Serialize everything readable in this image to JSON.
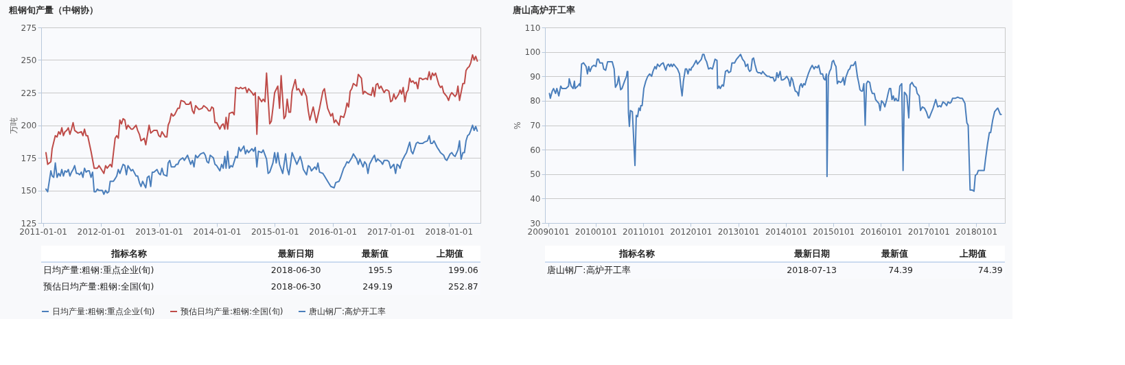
{
  "chart_data": [
    {
      "type": "line",
      "title": "粗钢旬产量（中钢协）",
      "ylabel": "万吨",
      "xlim": [
        "2010-12-21",
        "2018-07-20"
      ],
      "xticks": [
        "2011-01-01",
        "2012-01-01",
        "2013-01-01",
        "2014-01-01",
        "2015-01-01",
        "2016-01-01",
        "2017-01-01",
        "2018-01-01"
      ],
      "ylim": [
        125,
        275
      ],
      "yticks": [
        125,
        150,
        175,
        200,
        225,
        250,
        275
      ],
      "grid": "y",
      "legend": "bottom",
      "series": [
        {
          "name": "日均产量:粗钢:重点企业(旬)",
          "color": "#4a7ebb",
          "x": [
            "2011-01-20",
            "2011-01-31",
            "2011-02-20",
            "2011-02-28",
            "2011-03-10",
            "2011-03-20",
            "2011-03-31",
            "2011-04-10",
            "2011-04-20",
            "2011-04-30",
            "2011-05-10",
            "2011-05-20",
            "2011-05-31",
            "2011-06-10",
            "2011-06-20",
            "2011-06-30",
            "2011-07-10",
            "2011-07-20",
            "2011-07-31",
            "2011-08-10",
            "2011-08-20",
            "2011-08-31",
            "2011-09-10",
            "2011-09-20",
            "2011-09-30",
            "2011-10-10",
            "2011-10-20",
            "2011-10-31",
            "2011-11-10",
            "2011-11-20",
            "2011-11-30",
            "2011-12-10",
            "2011-12-20",
            "2012-01-10",
            "2012-01-20",
            "2012-01-31",
            "2012-02-10",
            "2012-02-20",
            "2012-02-29",
            "2012-03-10",
            "2012-03-20",
            "2012-03-31",
            "2012-04-10",
            "2012-04-20",
            "2012-04-30",
            "2012-05-20",
            "2012-05-31",
            "2012-06-10",
            "2012-06-20",
            "2012-07-10",
            "2012-07-20",
            "2012-08-10",
            "2012-08-20",
            "2012-08-31",
            "2012-09-10",
            "2012-09-20",
            "2012-10-10",
            "2012-10-20",
            "2012-10-31",
            "2012-11-10",
            "2012-11-20",
            "2012-11-30",
            "2012-12-20",
            "2012-12-31",
            "2013-01-10",
            "2013-01-20",
            "2013-01-31",
            "2013-02-20",
            "2013-02-28",
            "2013-03-10",
            "2013-03-20",
            "2013-04-10",
            "2013-04-20",
            "2013-04-30",
            "2013-05-10",
            "2013-05-31",
            "2013-06-10",
            "2013-06-20",
            "2013-06-30",
            "2013-07-20",
            "2013-07-31",
            "2013-08-10",
            "2013-08-20",
            "2013-08-31",
            "2013-09-20",
            "2013-10-10",
            "2013-10-20",
            "2013-10-31",
            "2013-11-10",
            "2013-11-20",
            "2013-12-10",
            "2013-12-20",
            "2013-12-31",
            "2014-01-20",
            "2014-01-31",
            "2014-02-10",
            "2014-02-20",
            "2014-02-28",
            "2014-03-10",
            "2014-03-20",
            "2014-03-31",
            "2014-04-10",
            "2014-04-30",
            "2014-05-10",
            "2014-05-20",
            "2014-05-31",
            "2014-06-20",
            "2014-06-30",
            "2014-07-10",
            "2014-07-20",
            "2014-08-10",
            "2014-08-20",
            "2014-08-31",
            "2014-09-10",
            "2014-09-20",
            "2014-10-10",
            "2014-10-20",
            "2014-11-10",
            "2014-11-20",
            "2014-11-30",
            "2014-12-20",
            "2014-12-31",
            "2015-01-10",
            "2015-01-20",
            "2015-01-31",
            "2015-02-20",
            "2015-03-10",
            "2015-03-20",
            "2015-03-31",
            "2015-04-10",
            "2015-04-20",
            "2015-05-10",
            "2015-05-20",
            "2015-06-10",
            "2015-06-20",
            "2015-06-30",
            "2015-07-20",
            "2015-07-31",
            "2015-08-10",
            "2015-08-20",
            "2015-09-10",
            "2015-09-20",
            "2015-09-30",
            "2015-10-10",
            "2015-10-31",
            "2015-11-10",
            "2015-11-30",
            "2015-12-10",
            "2015-12-20",
            "2016-01-10",
            "2016-01-20",
            "2016-02-10",
            "2016-02-20",
            "2016-03-10",
            "2016-03-20",
            "2016-03-31",
            "2016-04-10",
            "2016-04-30",
            "2016-05-10",
            "2016-05-31",
            "2016-06-10",
            "2016-06-20",
            "2016-07-10",
            "2016-07-20",
            "2016-07-31",
            "2016-08-10",
            "2016-08-20",
            "2016-09-10",
            "2016-09-20",
            "2016-09-30",
            "2016-10-10",
            "2016-10-31",
            "2016-11-10",
            "2016-11-20",
            "2016-12-10",
            "2016-12-20",
            "2016-12-31",
            "2017-01-20",
            "2017-01-31",
            "2017-02-10",
            "2017-02-20",
            "2017-02-28",
            "2017-03-10",
            "2017-03-31",
            "2017-04-10",
            "2017-04-20",
            "2017-04-30",
            "2017-05-10",
            "2017-05-20",
            "2017-06-10",
            "2017-06-20",
            "2017-06-30",
            "2017-07-20",
            "2017-07-31",
            "2017-08-20",
            "2017-08-31",
            "2017-09-10",
            "2017-09-20",
            "2017-09-30",
            "2017-10-20",
            "2017-10-31",
            "2017-11-10",
            "2017-11-30",
            "2017-12-10",
            "2017-12-20",
            "2018-01-10",
            "2018-01-20",
            "2018-01-31",
            "2018-02-10",
            "2018-02-28",
            "2018-03-10",
            "2018-03-20",
            "2018-03-31",
            "2018-04-10",
            "2018-04-20",
            "2018-04-30",
            "2018-05-10",
            "2018-05-20",
            "2018-05-31",
            "2018-06-10",
            "2018-06-20",
            "2018-06-30"
          ],
          "values": [
            151,
            149,
            165,
            161,
            160,
            171,
            160,
            163,
            161,
            166,
            161,
            165,
            164,
            166,
            161,
            164,
            166,
            169,
            163,
            163,
            162,
            164,
            160,
            167,
            164,
            165,
            165,
            160,
            164,
            149,
            149,
            151,
            150,
            150,
            147,
            150,
            148,
            149,
            157,
            157,
            157,
            159,
            161,
            166,
            163,
            170,
            169,
            162,
            169,
            165,
            166,
            161,
            161,
            156,
            153,
            157,
            152,
            160,
            161,
            153,
            164,
            164,
            166,
            163,
            162,
            167,
            162,
            161,
            171,
            173,
            168,
            168,
            170,
            170,
            173,
            175,
            173,
            175,
            177,
            170,
            173,
            168,
            177,
            175,
            178,
            179,
            177,
            172,
            171,
            177,
            175,
            170,
            169,
            165,
            170,
            167,
            176,
            167,
            180,
            167,
            169,
            168,
            176,
            175,
            183,
            180,
            184,
            178,
            181,
            179,
            182,
            180,
            183,
            168,
            180,
            179,
            181,
            174,
            163,
            164,
            171,
            179,
            171,
            179,
            170,
            163,
            178,
            167,
            162,
            170,
            179,
            173,
            170,
            176,
            172,
            166,
            162,
            169,
            168,
            165,
            168,
            166,
            171,
            164,
            163,
            161,
            157,
            155,
            153,
            152,
            156,
            157,
            160,
            167,
            169,
            172,
            171,
            175,
            178,
            174,
            170,
            174,
            168,
            172,
            170,
            163,
            170,
            175,
            177,
            172,
            174,
            172,
            170,
            173,
            173,
            172,
            167,
            170,
            163,
            170,
            169,
            167,
            172,
            177,
            179,
            183,
            187,
            180,
            178,
            186,
            187,
            186,
            186,
            187,
            188,
            192,
            186,
            186,
            188,
            183,
            181,
            179,
            177,
            174,
            173,
            178,
            179,
            177,
            176,
            181,
            188,
            174,
            179,
            179,
            188,
            192,
            193,
            196,
            200,
            196,
            199.06,
            195.5
          ]
        },
        {
          "name": "预估日均产量:粗钢:全国(旬)",
          "color": "#be4b48",
          "x": [
            "2011-01-20",
            "2011-01-31",
            "2011-02-20",
            "2011-02-28",
            "2011-03-20",
            "2011-03-31",
            "2011-04-10",
            "2011-04-20",
            "2011-04-30",
            "2011-05-10",
            "2011-05-20",
            "2011-05-31",
            "2011-06-10",
            "2011-06-20",
            "2011-06-30",
            "2011-07-10",
            "2011-07-20",
            "2011-08-10",
            "2011-08-31",
            "2011-09-10",
            "2011-09-20",
            "2011-09-30",
            "2011-10-10",
            "2011-10-31",
            "2011-11-20",
            "2011-12-10",
            "2011-12-20",
            "2011-12-31",
            "2012-01-20",
            "2012-01-31",
            "2012-02-10",
            "2012-02-29",
            "2012-03-10",
            "2012-03-31",
            "2012-04-10",
            "2012-04-20",
            "2012-04-30",
            "2012-05-10",
            "2012-05-20",
            "2012-05-31",
            "2012-06-10",
            "2012-06-20",
            "2012-07-10",
            "2012-07-20",
            "2012-08-10",
            "2012-08-20",
            "2012-08-31",
            "2012-09-10",
            "2012-09-30",
            "2012-10-10",
            "2012-10-31",
            "2012-11-10",
            "2012-11-30",
            "2012-12-20",
            "2012-12-31",
            "2013-01-10",
            "2013-01-20",
            "2013-02-10",
            "2013-02-20",
            "2013-02-28",
            "2013-03-10",
            "2013-03-20",
            "2013-03-31",
            "2013-04-10",
            "2013-04-30",
            "2013-05-10",
            "2013-05-20",
            "2013-06-10",
            "2013-06-20",
            "2013-07-10",
            "2013-07-20",
            "2013-07-31",
            "2013-08-10",
            "2013-08-20",
            "2013-09-10",
            "2013-09-30",
            "2013-10-10",
            "2013-10-31",
            "2013-11-10",
            "2013-11-20",
            "2013-11-30",
            "2013-12-10",
            "2013-12-20",
            "2013-12-31",
            "2014-01-20",
            "2014-01-31",
            "2014-02-10",
            "2014-02-20",
            "2014-02-28",
            "2014-03-10",
            "2014-03-20",
            "2014-04-10",
            "2014-04-20",
            "2014-04-30",
            "2014-05-20",
            "2014-05-31",
            "2014-06-10",
            "2014-06-30",
            "2014-07-10",
            "2014-07-20",
            "2014-08-10",
            "2014-08-20",
            "2014-08-31",
            "2014-09-10",
            "2014-09-20",
            "2014-10-10",
            "2014-10-20",
            "2014-10-31",
            "2014-11-10",
            "2014-11-30",
            "2014-12-10",
            "2014-12-20",
            "2014-12-31",
            "2015-01-20",
            "2015-01-31",
            "2015-02-10",
            "2015-02-28",
            "2015-03-10",
            "2015-03-20",
            "2015-03-31",
            "2015-04-10",
            "2015-04-20",
            "2015-05-10",
            "2015-05-20",
            "2015-05-31",
            "2015-06-20",
            "2015-06-30",
            "2015-07-20",
            "2015-07-31",
            "2015-08-10",
            "2015-08-31",
            "2015-09-20",
            "2015-10-10",
            "2015-10-31",
            "2015-11-10",
            "2015-11-20",
            "2015-11-30",
            "2015-12-20",
            "2015-12-31",
            "2016-01-10",
            "2016-01-20",
            "2016-02-10",
            "2016-02-20",
            "2016-03-10",
            "2016-03-20",
            "2016-03-31",
            "2016-04-10",
            "2016-04-20",
            "2016-04-30",
            "2016-05-10",
            "2016-05-31",
            "2016-06-10",
            "2016-06-30",
            "2016-07-10",
            "2016-07-20",
            "2016-07-31",
            "2016-08-10",
            "2016-08-31",
            "2016-09-10",
            "2016-09-20",
            "2016-09-30",
            "2016-10-10",
            "2016-10-20",
            "2016-10-31",
            "2016-11-20",
            "2016-11-30",
            "2016-12-10",
            "2016-12-20",
            "2016-12-31",
            "2017-01-10",
            "2017-01-20",
            "2017-01-31",
            "2017-02-20",
            "2017-02-28",
            "2017-03-10",
            "2017-03-20",
            "2017-03-31",
            "2017-04-10",
            "2017-04-20",
            "2017-04-30",
            "2017-05-10",
            "2017-05-20",
            "2017-05-31",
            "2017-06-10",
            "2017-06-20",
            "2017-06-30",
            "2017-07-10",
            "2017-07-20",
            "2017-08-10",
            "2017-08-20",
            "2017-08-31",
            "2017-09-10",
            "2017-09-20",
            "2017-09-30",
            "2017-10-10",
            "2017-10-31",
            "2017-11-10",
            "2017-11-20",
            "2017-11-30",
            "2017-12-20",
            "2017-12-31",
            "2018-01-10",
            "2018-01-20",
            "2018-02-10",
            "2018-02-20",
            "2018-02-28",
            "2018-03-10",
            "2018-03-31",
            "2018-04-10",
            "2018-04-20",
            "2018-04-30",
            "2018-05-10",
            "2018-05-20",
            "2018-05-31",
            "2018-06-10",
            "2018-06-20",
            "2018-06-30"
          ],
          "values": [
            179,
            170,
            172,
            182,
            192,
            191,
            195,
            193,
            198,
            192,
            195,
            196,
            198,
            193,
            197,
            202,
            196,
            194,
            195,
            192,
            197,
            192,
            192,
            180,
            167,
            167,
            169,
            167,
            163,
            169,
            167,
            170,
            168,
            190,
            192,
            190,
            204,
            201,
            205,
            204,
            197,
            200,
            197,
            197,
            200,
            196,
            193,
            188,
            190,
            185,
            200,
            194,
            196,
            196,
            192,
            191,
            195,
            191,
            191,
            200,
            203,
            209,
            207,
            208,
            213,
            213,
            219,
            218,
            216,
            216,
            218,
            211,
            209,
            215,
            212,
            213,
            215,
            213,
            211,
            211,
            214,
            213,
            202,
            202,
            197,
            200,
            201,
            197,
            206,
            197,
            209,
            210,
            208,
            229,
            228,
            229,
            228,
            229,
            225,
            228,
            225,
            223,
            225,
            193,
            222,
            218,
            220,
            218,
            240,
            201,
            203,
            213,
            225,
            230,
            213,
            238,
            205,
            207,
            220,
            210,
            210,
            226,
            235,
            227,
            228,
            223,
            228,
            222,
            211,
            204,
            214,
            202,
            213,
            226,
            228,
            220,
            213,
            207,
            209,
            202,
            204,
            200,
            207,
            206,
            210,
            217,
            214,
            226,
            228,
            232,
            230,
            239,
            236,
            224,
            226,
            225,
            224,
            223,
            229,
            222,
            231,
            232,
            228,
            230,
            225,
            227,
            227,
            226,
            218,
            219,
            224,
            220,
            224,
            227,
            224,
            229,
            218,
            225,
            227,
            236,
            233,
            234,
            232,
            233,
            228,
            236,
            236,
            235,
            236,
            235,
            241,
            235,
            240,
            238,
            240,
            231,
            229,
            230,
            225,
            222,
            219,
            223,
            225,
            222,
            224,
            230,
            219,
            232,
            232,
            242,
            244,
            245,
            248,
            254,
            250,
            252.87,
            249.19
          ]
        }
      ],
      "annotations": [
        "指标名称",
        "最新日期",
        "最新值",
        "上期值",
        "日均产量:粗钢:重点企业(旬)",
        "2018-06-30",
        "195.5",
        "199.06",
        "预估日均产量:粗钢:全国(旬)",
        "2018-06-30",
        "249.19",
        "252.87"
      ]
    },
    {
      "type": "line",
      "title": "唐山高炉开工率",
      "ylabel": "%",
      "xlim": [
        "2008-12-08",
        "2018-08-10"
      ],
      "xticks": [
        {
          "value": "2009-01-01",
          "label": "20090101"
        },
        {
          "value": "2010-01-01",
          "label": "20100101"
        },
        {
          "value": "2011-01-01",
          "label": "20110101"
        },
        {
          "value": "2012-01-01",
          "label": "20120101"
        },
        {
          "value": "2013-01-01",
          "label": "20130101"
        },
        {
          "value": "2014-01-01",
          "label": "20140101"
        },
        {
          "value": "2015-01-01",
          "label": "20150101"
        },
        {
          "value": "2016-01-01",
          "label": "20160101"
        },
        {
          "value": "2017-01-01",
          "label": "20170101"
        },
        {
          "value": "2018-01-01",
          "label": "20180101"
        }
      ],
      "ylim": [
        30,
        110
      ],
      "yticks": [
        30,
        40,
        50,
        60,
        70,
        80,
        90,
        100,
        110
      ],
      "grid": "y",
      "legend": "bottom",
      "series": [
        {
          "name": "唐山钢厂:高炉开工率",
          "color": "#4a7ebb",
          "x": [
            "2009-01-11",
            "2009-01-18",
            "2009-02-02",
            "2009-02-12",
            "2009-02-27",
            "2009-03-09",
            "2009-03-24",
            "2009-04-08",
            "2009-04-18",
            "2009-05-18",
            "2009-06-07",
            "2009-06-12",
            "2009-06-27",
            "2009-07-12",
            "2009-07-22",
            "2009-07-27",
            "2009-08-16",
            "2009-08-31",
            "2009-09-05",
            "2009-09-15",
            "2009-09-30",
            "2009-10-20",
            "2009-10-30",
            "2009-11-09",
            "2009-11-19",
            "2009-12-04",
            "2009-12-19",
            "2010-01-03",
            "2010-01-13",
            "2010-01-23",
            "2010-02-02",
            "2010-02-22",
            "2010-03-04",
            "2010-03-19",
            "2010-04-03",
            "2010-05-08",
            "2010-05-23",
            "2010-06-02",
            "2010-06-17",
            "2010-06-27",
            "2010-07-12",
            "2010-07-22",
            "2010-08-11",
            "2010-08-26",
            "2010-08-31",
            "2010-09-05",
            "2010-09-10",
            "2010-09-17",
            "2010-09-25",
            "2010-10-10",
            "2010-10-15",
            "2010-10-30",
            "2010-11-09",
            "2010-11-19",
            "2010-11-29",
            "2010-12-09",
            "2010-12-14",
            "2010-12-24",
            "2011-01-06",
            "2011-01-21",
            "2011-02-05",
            "2011-02-20",
            "2011-03-07",
            "2011-03-17",
            "2011-04-01",
            "2011-04-11",
            "2011-04-21",
            "2011-05-06",
            "2011-05-20",
            "2011-06-04",
            "2011-06-19",
            "2011-06-24",
            "2011-07-04",
            "2011-07-14",
            "2011-07-24",
            "2011-08-03",
            "2011-08-13",
            "2011-08-23",
            "2011-09-07",
            "2011-09-22",
            "2011-10-07",
            "2011-10-17",
            "2011-10-27",
            "2011-11-06",
            "2011-11-21",
            "2011-12-01",
            "2011-12-11",
            "2011-12-21",
            "2012-01-03",
            "2012-01-08",
            "2012-01-18",
            "2012-02-02",
            "2012-02-12",
            "2012-02-22",
            "2012-03-08",
            "2012-03-23",
            "2012-04-02",
            "2012-04-12",
            "2012-04-22",
            "2012-05-02",
            "2012-05-12",
            "2012-05-17",
            "2012-06-01",
            "2012-06-16",
            "2012-06-26",
            "2012-07-06",
            "2012-07-21",
            "2012-07-26",
            "2012-08-05",
            "2012-08-15",
            "2012-08-30",
            "2012-09-09",
            "2012-09-24",
            "2012-10-09",
            "2012-10-19",
            "2012-11-03",
            "2012-11-13",
            "2012-12-03",
            "2012-12-18",
            "2013-01-03",
            "2013-01-18",
            "2013-02-02",
            "2013-02-17",
            "2013-02-27",
            "2013-03-14",
            "2013-03-19",
            "2013-03-29",
            "2013-04-08",
            "2013-04-18",
            "2013-04-28",
            "2013-05-08",
            "2013-05-23",
            "2013-06-02",
            "2013-06-17",
            "2013-06-27",
            "2013-07-07",
            "2013-07-22",
            "2013-08-11",
            "2013-08-26",
            "2013-09-05",
            "2013-09-25",
            "2013-10-05",
            "2013-10-15",
            "2013-10-24",
            "2013-11-03",
            "2013-11-18",
            "2013-11-28",
            "2013-12-08",
            "2013-12-23",
            "2014-01-08",
            "2014-01-23",
            "2014-02-02",
            "2014-02-12",
            "2014-02-22",
            "2014-03-04",
            "2014-03-14",
            "2014-03-29",
            "2014-04-08",
            "2014-04-18",
            "2014-04-28",
            "2014-05-08",
            "2014-05-18",
            "2014-05-28",
            "2014-06-07",
            "2014-06-22",
            "2014-07-07",
            "2014-07-22",
            "2014-08-06",
            "2014-08-16",
            "2014-08-31",
            "2014-09-10",
            "2014-09-25",
            "2014-10-10",
            "2014-10-19",
            "2014-10-29",
            "2014-11-08",
            "2014-11-13",
            "2014-11-23",
            "2014-12-03",
            "2014-12-13",
            "2014-12-23",
            "2015-01-02",
            "2015-01-11",
            "2015-01-21",
            "2015-01-31",
            "2015-02-10",
            "2015-02-25",
            "2015-03-07",
            "2015-03-17",
            "2015-03-27",
            "2015-04-06",
            "2015-04-16",
            "2015-04-26",
            "2015-05-06",
            "2015-05-16",
            "2015-06-04",
            "2015-06-19",
            "2015-07-04",
            "2015-07-14",
            "2015-07-24",
            "2015-08-03",
            "2015-08-13",
            "2015-08-23",
            "2015-09-02",
            "2015-09-12",
            "2015-09-22",
            "2015-10-07",
            "2015-10-17",
            "2015-10-27",
            "2015-11-11",
            "2015-11-21",
            "2015-12-06",
            "2015-12-16",
            "2015-12-26",
            "2016-01-06",
            "2016-01-21",
            "2016-01-31",
            "2016-02-15",
            "2016-02-25",
            "2016-03-06",
            "2016-03-16",
            "2016-03-26",
            "2016-04-05",
            "2016-04-15",
            "2016-04-25",
            "2016-05-05",
            "2016-05-15",
            "2016-05-25",
            "2016-06-09",
            "2016-06-19",
            "2016-06-29",
            "2016-07-08",
            "2016-07-18",
            "2016-08-02",
            "2016-08-12",
            "2016-08-27",
            "2016-09-11",
            "2016-09-26",
            "2016-10-06",
            "2016-10-21",
            "2016-10-31",
            "2016-11-15",
            "2016-11-30",
            "2016-12-15",
            "2016-12-30",
            "2017-01-06",
            "2017-01-21",
            "2017-02-05",
            "2017-02-25",
            "2017-03-12",
            "2017-03-27",
            "2017-04-06",
            "2017-04-21",
            "2017-05-06",
            "2017-05-20",
            "2017-05-30",
            "2017-06-14",
            "2017-06-24",
            "2017-07-04",
            "2017-07-24",
            "2017-08-13",
            "2017-09-02",
            "2017-09-17",
            "2017-10-07",
            "2017-10-22",
            "2017-11-01",
            "2017-11-16",
            "2017-12-01",
            "2017-12-16",
            "2017-12-26",
            "2018-01-08",
            "2018-01-18",
            "2018-03-04",
            "2018-03-14",
            "2018-03-29",
            "2018-04-13",
            "2018-04-23",
            "2018-05-08",
            "2018-05-23",
            "2018-06-07",
            "2018-06-17",
            "2018-07-06",
            "2018-07-13"
          ],
          "values": [
            83,
            81,
            84,
            85,
            83,
            85,
            82,
            86,
            85,
            85,
            86,
            89,
            86,
            85,
            88,
            85,
            86,
            87,
            86,
            95,
            95.5,
            94,
            91,
            94,
            92,
            94,
            94.5,
            94,
            97,
            97,
            95.5,
            95.5,
            93,
            92.5,
            96,
            96,
            93,
            85.5,
            87,
            90,
            84.5,
            85,
            88,
            90,
            92,
            92,
            75,
            69.5,
            76,
            75.5,
            70,
            53.5,
            74,
            73.5,
            77,
            76,
            78,
            78,
            85,
            88,
            90,
            91,
            90,
            92,
            94,
            93,
            95,
            94,
            95,
            95.5,
            93,
            92.5,
            94.5,
            95,
            94,
            95,
            94,
            95,
            94,
            93,
            91,
            86,
            82,
            88,
            93,
            93,
            91,
            93,
            92.5,
            93.5,
            94,
            95.5,
            96.5,
            95,
            96,
            97,
            99,
            99,
            97,
            96,
            94,
            93,
            93.5,
            93,
            95,
            97,
            96.5,
            85,
            86,
            85,
            86.5,
            86,
            92,
            92.5,
            91.5,
            92,
            95.5,
            95.5,
            97,
            98,
            99,
            97,
            96,
            94,
            95,
            93,
            92,
            92.5,
            97,
            97.5,
            95,
            92,
            91.5,
            91.5,
            91,
            92,
            91,
            90,
            90,
            89.5,
            89.5,
            88,
            88.5,
            91.5,
            89.5,
            92,
            88.5,
            88.5,
            89,
            90,
            88.5,
            86,
            89.5,
            88.5,
            86,
            84,
            83.5,
            82,
            86,
            87,
            85.5,
            87,
            86.5,
            88.5,
            91,
            93,
            94.5,
            93,
            94,
            93.5,
            94.5,
            91,
            91,
            89,
            88.5,
            91,
            49,
            90,
            92,
            93,
            96,
            96.5,
            95,
            94,
            87,
            88,
            87.5,
            88,
            89.5,
            86.5,
            89.5,
            91,
            92.5,
            93,
            94.5,
            94.5,
            96,
            90,
            87.5,
            84.5,
            84,
            84,
            87,
            70,
            87,
            88,
            87.5,
            84.5,
            83,
            83,
            80.5,
            79.5,
            79,
            76,
            80,
            79,
            77.5,
            80.5,
            83,
            85,
            85,
            80.5,
            82,
            80,
            81,
            80,
            80,
            86,
            87,
            51.5,
            83.5,
            83,
            82,
            73,
            86.5,
            87.5,
            86,
            85.5,
            83,
            82,
            76,
            77.5,
            77,
            75.5,
            73,
            73,
            75,
            77,
            80.5,
            77.5,
            78,
            77.5,
            79.5,
            79,
            78,
            79.5,
            79,
            79.5,
            81,
            81,
            81.5,
            81,
            81,
            79,
            71,
            70,
            43.5,
            43.5,
            43,
            49.5,
            50,
            51.5,
            51.5,
            56,
            62,
            67,
            67,
            72,
            75.5,
            76.5,
            77,
            74.39,
            74.39
          ]
        }
      ],
      "annotations": [
        "指标名称",
        "最新日期",
        "最新值",
        "上期值",
        "唐山钢厂:高炉开工率",
        "2018-07-13",
        "74.39",
        "74.39"
      ]
    }
  ]
}
